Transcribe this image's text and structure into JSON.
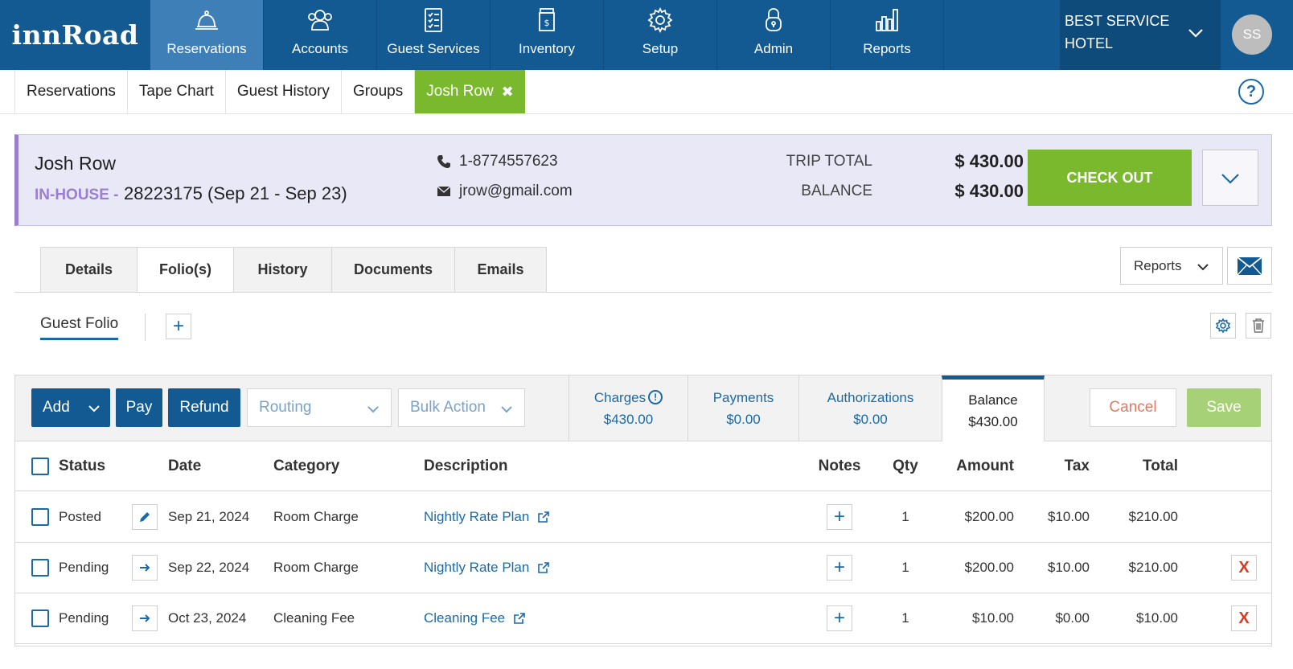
{
  "app": {
    "logo": "innRoad"
  },
  "nav": {
    "items": [
      {
        "label": "Reservations",
        "icon": "bell-icon"
      },
      {
        "label": "Accounts",
        "icon": "users-icon"
      },
      {
        "label": "Guest Services",
        "icon": "checklist-icon"
      },
      {
        "label": "Inventory",
        "icon": "jar-icon"
      },
      {
        "label": "Setup",
        "icon": "gear-icon"
      },
      {
        "label": "Admin",
        "icon": "lock-icon"
      },
      {
        "label": "Reports",
        "icon": "bar-chart-icon"
      }
    ],
    "hotel_line1": "BEST SERVICE",
    "hotel_line2": "HOTEL",
    "avatar": "SS"
  },
  "subtabs": {
    "items": [
      "Reservations",
      "Tape Chart",
      "Guest History",
      "Groups"
    ],
    "active": "Josh Row",
    "help": "?"
  },
  "guest": {
    "name": "Josh Row",
    "status": "IN-HOUSE -",
    "reservation": "28223175 (Sep 21 - Sep 23)",
    "phone": "1-8774557623",
    "email": "jrow@gmail.com",
    "trip_total_label": "TRIP TOTAL",
    "trip_total": "$ 430.00",
    "balance_label": "BALANCE",
    "balance": "$ 430.00",
    "checkout_label": "CHECK OUT"
  },
  "detail_tabs": [
    "Details",
    "Folio(s)",
    "History",
    "Documents",
    "Emails"
  ],
  "reports_label": "Reports",
  "folio": {
    "tab": "Guest Folio",
    "add_label": "+"
  },
  "toolbar": {
    "add": "Add",
    "pay": "Pay",
    "refund": "Refund",
    "routing": "Routing",
    "bulk": "Bulk Action",
    "cancel": "Cancel",
    "save": "Save"
  },
  "summary": {
    "charges_label": "Charges",
    "charges": "$430.00",
    "payments_label": "Payments",
    "payments": "$0.00",
    "auth_label": "Authorizations",
    "auth": "$0.00",
    "balance_label": "Balance",
    "balance": "$430.00"
  },
  "table": {
    "headers": {
      "status": "Status",
      "date": "Date",
      "category": "Category",
      "description": "Description",
      "notes": "Notes",
      "qty": "Qty",
      "amount": "Amount",
      "tax": "Tax",
      "total": "Total"
    },
    "rows": [
      {
        "status": "Posted",
        "date": "Sep 21, 2024",
        "category": "Room Charge",
        "description": "Nightly Rate Plan",
        "notes": "+",
        "qty": "1",
        "amount": "$200.00",
        "tax": "$10.00",
        "total": "$210.00"
      },
      {
        "status": "Pending",
        "date": "Sep 22, 2024",
        "category": "Room Charge",
        "description": "Nightly Rate Plan",
        "notes": "+",
        "qty": "1",
        "amount": "$200.00",
        "tax": "$10.00",
        "total": "$210.00",
        "delete": "X"
      },
      {
        "status": "Pending",
        "date": "Oct 23, 2024",
        "category": "Cleaning Fee",
        "description": "Cleaning Fee",
        "notes": "+",
        "qty": "1",
        "amount": "$10.00",
        "tax": "$0.00",
        "total": "$10.00",
        "delete": "X"
      }
    ]
  },
  "colors": {
    "nav_blue": "#135a92",
    "active_green": "#7ab92d",
    "inhouse_purple": "#9a7fd1",
    "link_blue": "#1a6aa8",
    "delete_red": "#d93a1f"
  }
}
